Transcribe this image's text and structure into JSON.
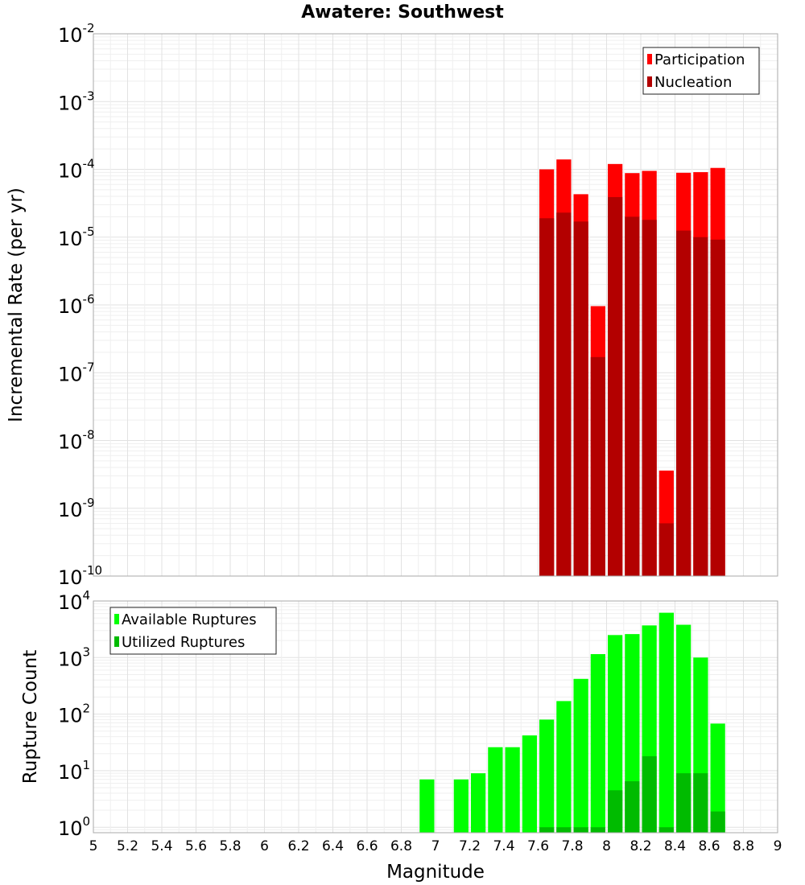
{
  "chart_data": [
    {
      "type": "bar",
      "title": "Awatere: Southwest",
      "xlabel": "",
      "ylabel": "Incremental Rate (per yr)",
      "yscale": "log",
      "ylim": [
        1e-10,
        0.01
      ],
      "xlim": [
        5,
        9
      ],
      "grid": true,
      "legend_position": "top-right",
      "y_ticks": [
        {
          "base": "10",
          "exp": "-2"
        },
        {
          "base": "10",
          "exp": "-3"
        },
        {
          "base": "10",
          "exp": "-4"
        },
        {
          "base": "10",
          "exp": "-5"
        },
        {
          "base": "10",
          "exp": "-6"
        },
        {
          "base": "10",
          "exp": "-7"
        },
        {
          "base": "10",
          "exp": "-8"
        },
        {
          "base": "10",
          "exp": "-9"
        },
        {
          "base": "10",
          "exp": "-10"
        }
      ],
      "x": [
        7.65,
        7.75,
        7.85,
        7.95,
        8.05,
        8.15,
        8.25,
        8.35,
        8.45,
        8.55,
        8.65
      ],
      "series": [
        {
          "name": "Participation",
          "color": "#ff0000",
          "values": [
            0.0001,
            0.00014,
            4.3e-05,
            9.6e-07,
            0.00012,
            8.8e-05,
            9.5e-05,
            3.6e-09,
            8.9e-05,
            9.1e-05,
            0.000105
          ]
        },
        {
          "name": "Nucleation",
          "color": "#b30000",
          "values": [
            1.9e-05,
            2.3e-05,
            1.7e-05,
            1.7e-07,
            3.9e-05,
            2e-05,
            1.8e-05,
            6e-10,
            1.25e-05,
            1e-05,
            9.2e-06
          ]
        }
      ]
    },
    {
      "type": "bar",
      "title": "",
      "xlabel": "Magnitude",
      "ylabel": "Rupture Count",
      "yscale": "log",
      "ylim": [
        0.8,
        10000
      ],
      "xlim": [
        5,
        9
      ],
      "grid": true,
      "legend_position": "top-left",
      "y_ticks": [
        {
          "base": "10",
          "exp": "4"
        },
        {
          "base": "10",
          "exp": "3"
        },
        {
          "base": "10",
          "exp": "2"
        },
        {
          "base": "10",
          "exp": "1"
        },
        {
          "base": "10",
          "exp": "0"
        }
      ],
      "x_ticks": [
        "5",
        "5.2",
        "5.4",
        "5.6",
        "5.8",
        "6",
        "6.2",
        "6.4",
        "6.6",
        "6.8",
        "7",
        "7.2",
        "7.4",
        "7.6",
        "7.8",
        "8",
        "8.2",
        "8.4",
        "8.6",
        "8.8",
        "9"
      ],
      "x": [
        6.95,
        7.15,
        7.25,
        7.35,
        7.45,
        7.55,
        7.65,
        7.75,
        7.85,
        7.95,
        8.05,
        8.15,
        8.25,
        8.35,
        8.45,
        8.55,
        8.65
      ],
      "series": [
        {
          "name": "Available Ruptures",
          "color": "#00ff00",
          "values": [
            7,
            7,
            9,
            26,
            26,
            42,
            80,
            170,
            420,
            1150,
            2500,
            2600,
            3700,
            6200,
            3800,
            1000,
            68
          ]
        },
        {
          "name": "Utilized Ruptures",
          "color": "#00bb00",
          "values": [
            0,
            0,
            0,
            0,
            0,
            0,
            1,
            1,
            1,
            1,
            4.5,
            6.5,
            18,
            1,
            9,
            9,
            1.9
          ]
        }
      ]
    }
  ]
}
